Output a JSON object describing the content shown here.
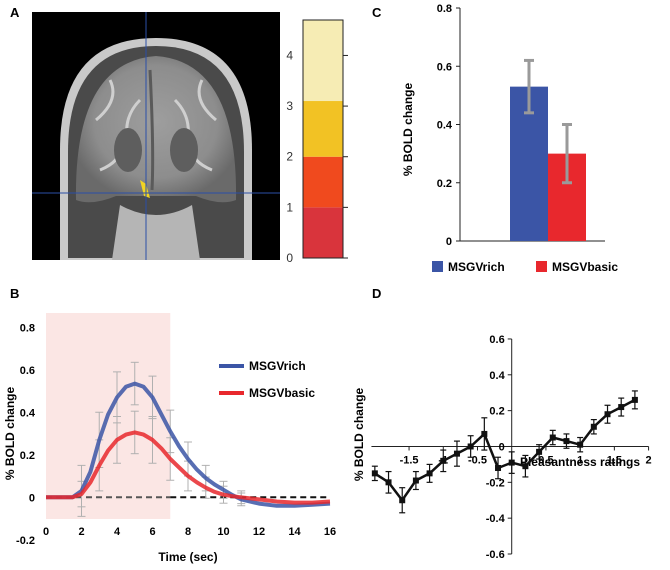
{
  "panel_labels": {
    "a": "A",
    "b": "B",
    "c": "C",
    "d": "D"
  },
  "brain": {
    "alt": "coronal brain slice"
  },
  "colors": {
    "rich": "#3b55a6",
    "basic": "#e8282d",
    "highlight": "#fbe6e4",
    "errbar": "#9a9a9a",
    "baseline": "#111111"
  },
  "chart_data": [
    {
      "id": "A-colorbar",
      "type": "colorbar",
      "ticks": [
        "0",
        "1",
        "2",
        "3",
        "4"
      ],
      "tick_values": [
        0,
        1,
        2,
        3,
        4
      ],
      "range": [
        0,
        4.7
      ],
      "bands": [
        {
          "from": 0,
          "to": 1,
          "color": "#d9343c"
        },
        {
          "from": 1,
          "to": 2,
          "color": "#f04a1e"
        },
        {
          "from": 2,
          "to": 3.1,
          "color": "#f2c224"
        },
        {
          "from": 3.1,
          "to": 4.7,
          "color": "#f6ecb4"
        }
      ]
    },
    {
      "id": "B",
      "type": "line",
      "xlabel": "Time (sec)",
      "ylabel": "% BOLD change",
      "xlim": [
        0,
        16
      ],
      "ylim": [
        -0.22,
        0.82
      ],
      "xticks": [
        0,
        2,
        4,
        6,
        8,
        10,
        12,
        14,
        16
      ],
      "xtick_labels": [
        "0",
        "2",
        "4",
        "6",
        "8",
        "10",
        "12",
        "14",
        "16"
      ],
      "yticks": [
        -0.2,
        0,
        0.2,
        0.4,
        0.6,
        0.8
      ],
      "ytick_labels": [
        "-0.2",
        "0",
        "0.2",
        "0.4",
        "0.6",
        "0.8"
      ],
      "shaded_x": [
        0,
        7
      ],
      "legend_position": "right",
      "series": [
        {
          "name": "MSGVrich",
          "color": "#3b55a6",
          "x": [
            0,
            1,
            1.5,
            2,
            2.5,
            3,
            3.5,
            4,
            4.5,
            5,
            5.5,
            6,
            6.5,
            7,
            7.5,
            8,
            8.5,
            9,
            9.5,
            10,
            10.5,
            11,
            12,
            13,
            14,
            15,
            16
          ],
          "y": [
            0,
            0,
            0,
            0.03,
            0.12,
            0.27,
            0.39,
            0.47,
            0.52,
            0.535,
            0.52,
            0.47,
            0.39,
            0.31,
            0.24,
            0.18,
            0.13,
            0.09,
            0.06,
            0.035,
            0.01,
            -0.01,
            -0.03,
            -0.04,
            -0.04,
            -0.035,
            -0.03
          ]
        },
        {
          "name": "MSGVbasic",
          "color": "#e8282d",
          "x": [
            0,
            1,
            1.5,
            2,
            2.5,
            3,
            3.5,
            4,
            4.5,
            5,
            5.5,
            6,
            6.5,
            7,
            7.5,
            8,
            8.5,
            9,
            9.5,
            10,
            10.5,
            11,
            12,
            13,
            14,
            15,
            16
          ],
          "y": [
            0,
            0,
            0,
            0.015,
            0.07,
            0.15,
            0.22,
            0.27,
            0.295,
            0.305,
            0.295,
            0.27,
            0.23,
            0.18,
            0.14,
            0.1,
            0.07,
            0.045,
            0.025,
            0.012,
            0.005,
            0,
            -0.01,
            -0.02,
            -0.025,
            -0.025,
            -0.02
          ]
        }
      ],
      "error_bars": {
        "x": [
          2,
          3,
          4,
          5,
          6,
          7,
          8,
          9,
          10,
          11
        ],
        "rich": [
          [
            0.03,
            0.12
          ],
          [
            0.27,
            0.13
          ],
          [
            0.47,
            0.12
          ],
          [
            0.535,
            0.1
          ],
          [
            0.47,
            0.1
          ],
          [
            0.31,
            0.1
          ],
          [
            0.18,
            0.08
          ],
          [
            0.09,
            0.06
          ],
          [
            0.035,
            0.04
          ],
          [
            -0.01,
            0.03
          ]
        ],
        "basic": [
          [
            0.015,
            0.06
          ],
          [
            0.15,
            0.12
          ],
          [
            0.27,
            0.11
          ],
          [
            0.305,
            0.1
          ],
          [
            0.27,
            0.11
          ],
          [
            0.18,
            0.1
          ],
          [
            0.1,
            0.07
          ],
          [
            0.045,
            0.05
          ],
          [
            0.012,
            0.04
          ],
          [
            0,
            0.03
          ]
        ]
      },
      "baseline": {
        "y": 0,
        "style": "dashed"
      }
    },
    {
      "id": "C",
      "type": "bar",
      "ylabel": "% BOLD change",
      "ylim": [
        0,
        0.8
      ],
      "yticks": [
        0,
        0.2,
        0.4,
        0.6,
        0.8
      ],
      "ytick_labels": [
        "0",
        "0.2",
        "0.4",
        "0.6",
        "0.8"
      ],
      "categories": [
        "MSGVrich",
        "MSGVbasic"
      ],
      "values": [
        0.53,
        0.3
      ],
      "errors": [
        0.09,
        0.1
      ],
      "legend": [
        "MSGVrich",
        "MSGVbasic"
      ],
      "legend_position": "bottom"
    },
    {
      "id": "D",
      "type": "line",
      "xlabel": "Pleasantness ratings",
      "ylabel": "% BOLD change",
      "xlim": [
        -2.1,
        2.05
      ],
      "ylim": [
        -0.6,
        0.65
      ],
      "xticks": [
        -1.5,
        -1,
        -0.5,
        0.5,
        1,
        1.5,
        2
      ],
      "xtick_labels": [
        "-1.5",
        "-1",
        "-0.5",
        "0.5",
        "1",
        "1.5",
        "2"
      ],
      "yticks": [
        -0.6,
        -0.4,
        -0.2,
        0,
        0.2,
        0.4,
        0.6
      ],
      "ytick_labels": [
        "-0.6",
        "-0.4",
        "-0.2",
        "0",
        "0.2",
        "0.4",
        "0.6"
      ],
      "series": [
        {
          "name": "BOLD",
          "color": "#111111",
          "x": [
            -2,
            -1.8,
            -1.6,
            -1.4,
            -1.2,
            -1.0,
            -0.8,
            -0.6,
            -0.4,
            -0.2,
            0,
            0.2,
            0.4,
            0.6,
            0.8,
            1.0,
            1.2,
            1.4,
            1.6,
            1.8
          ],
          "y": [
            -0.15,
            -0.2,
            -0.3,
            -0.19,
            -0.15,
            -0.08,
            -0.04,
            0,
            0.07,
            -0.12,
            -0.09,
            -0.11,
            -0.03,
            0.05,
            0.03,
            0.01,
            0.11,
            0.18,
            0.22,
            0.26
          ],
          "errors": [
            0.04,
            0.06,
            0.07,
            0.05,
            0.05,
            0.06,
            0.07,
            0.06,
            0.09,
            0.06,
            0.06,
            0.06,
            0.04,
            0.04,
            0.04,
            0.04,
            0.04,
            0.05,
            0.05,
            0.05
          ]
        }
      ]
    }
  ]
}
